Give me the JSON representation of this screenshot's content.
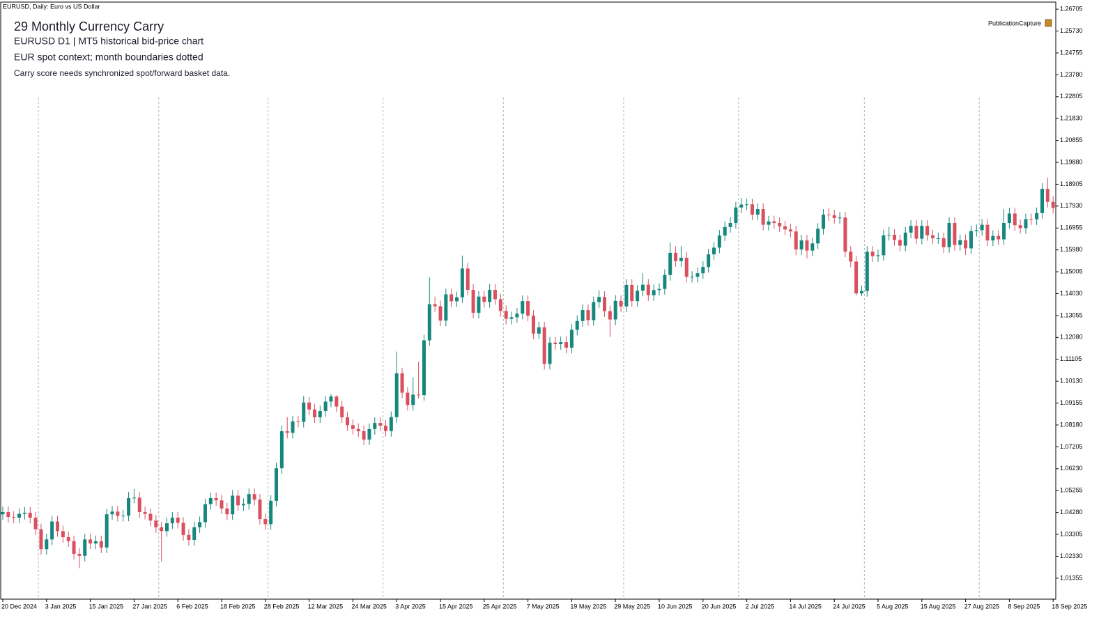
{
  "chart_data": {
    "type": "candlestick",
    "header": "EURUSD, Daily:  Euro vs US Dollar",
    "title": "29  Monthly Currency Carry",
    "subtitle": "EURUSD  D1  |  MT5 historical bid-price chart",
    "context": "EUR spot context; month boundaries dotted",
    "note": "Carry score needs synchronized spot/forward basket data.",
    "badge": "PublicationCapture",
    "bull_color": "#16877d",
    "bear_color": "#d9505f",
    "ylim": [
      1.0042,
      1.2702
    ],
    "yticks": [
      1.01355,
      {
        "value": 1.0233,
        "label": "1.02330"
      },
      1.03305,
      {
        "value": 1.0428,
        "label": "1.04280"
      },
      1.05255,
      {
        "value": 1.0623,
        "label": "1.06230"
      },
      1.07205,
      {
        "value": 1.0818,
        "label": "1.08180"
      },
      1.09155,
      {
        "value": 1.1013,
        "label": "1.10130"
      },
      1.11105,
      {
        "value": 1.1208,
        "label": "1.12080"
      },
      1.13055,
      {
        "value": 1.1403,
        "label": "1.14030"
      },
      1.15005,
      {
        "value": 1.1598,
        "label": "1.15980"
      },
      1.16955,
      {
        "value": 1.1793,
        "label": "1.17930"
      },
      1.18905,
      {
        "value": 1.1988,
        "label": "1.19880"
      },
      1.20855,
      {
        "value": 1.2183,
        "label": "1.21830"
      },
      1.22805,
      {
        "value": 1.2378,
        "label": "1.23780"
      },
      1.24755,
      {
        "value": 1.2573,
        "label": "1.25730"
      },
      1.26705
    ],
    "categories": [
      "20 Dec 2024",
      null,
      null,
      null,
      null,
      null,
      null,
      null,
      "3 Jan 2025",
      null,
      null,
      null,
      null,
      null,
      null,
      null,
      "15 Jan 2025",
      null,
      null,
      null,
      null,
      null,
      null,
      null,
      "27 Jan 2025",
      null,
      null,
      null,
      null,
      null,
      null,
      null,
      "6 Feb 2025",
      null,
      null,
      null,
      null,
      null,
      null,
      null,
      "18 Feb 2025",
      null,
      null,
      null,
      null,
      null,
      null,
      null,
      "28 Feb 2025",
      null,
      null,
      null,
      null,
      null,
      null,
      null,
      "12 Mar 2025",
      null,
      null,
      null,
      null,
      null,
      null,
      null,
      "24 Mar 2025",
      null,
      null,
      null,
      null,
      null,
      null,
      null,
      "3 Apr 2025",
      null,
      null,
      null,
      null,
      null,
      null,
      null,
      "15 Apr 2025",
      null,
      null,
      null,
      null,
      null,
      null,
      null,
      "25 Apr 2025",
      null,
      null,
      null,
      null,
      null,
      null,
      null,
      "7 May 2025",
      null,
      null,
      null,
      null,
      null,
      null,
      null,
      "19 May 2025",
      null,
      null,
      null,
      null,
      null,
      null,
      null,
      "29 May 2025",
      null,
      null,
      null,
      null,
      null,
      null,
      null,
      "10 Jun 2025",
      null,
      null,
      null,
      null,
      null,
      null,
      null,
      "20 Jun 2025",
      null,
      null,
      null,
      null,
      null,
      null,
      null,
      "2 Jul 2025",
      null,
      null,
      null,
      null,
      null,
      null,
      null,
      "14 Jul 2025",
      null,
      null,
      null,
      null,
      null,
      null,
      null,
      "24 Jul 2025",
      null,
      null,
      null,
      null,
      null,
      null,
      null,
      "5 Aug 2025",
      null,
      null,
      null,
      null,
      null,
      null,
      null,
      "15 Aug 2025",
      null,
      null,
      null,
      null,
      null,
      null,
      null,
      "27 Aug 2025",
      null,
      null,
      null,
      null,
      null,
      null,
      null,
      "8 Sep 2025",
      null,
      null,
      null,
      null,
      null,
      null,
      null,
      "18 Sep 2025"
    ],
    "open": [
      1.042,
      1.043,
      1.0408,
      1.0405,
      1.0422,
      1.0427,
      1.0405,
      1.0353,
      1.0265,
      1.0308,
      1.0388,
      1.0345,
      1.0318,
      1.03,
      1.0244,
      1.0235,
      1.0308,
      1.029,
      1.03,
      1.0272,
      1.042,
      1.0432,
      1.0413,
      1.0414,
      1.0492,
      1.0494,
      1.043,
      1.0422,
      1.0392,
      1.0362,
      1.0345,
      1.038,
      1.0405,
      1.0382,
      1.0328,
      1.0306,
      1.0362,
      1.0385,
      1.0465,
      1.0492,
      1.0482,
      1.0446,
      1.042,
      1.0503,
      1.046,
      1.0466,
      1.051,
      1.0485,
      1.0399,
      1.0376,
      1.048,
      1.0625,
      1.079,
      1.0783,
      1.0834,
      1.0832,
      1.0918,
      1.0887,
      1.0852,
      1.088,
      1.0922,
      1.0945,
      1.09,
      1.0852,
      1.0817,
      1.08,
      1.079,
      1.0753,
      1.08,
      1.0827,
      1.0815,
      1.0791,
      1.0853,
      1.1048,
      1.0962,
      1.0907,
      1.0953,
      1.0951,
      1.1195,
      1.1356,
      1.1347,
      1.1283,
      1.14,
      1.1369,
      1.1387,
      1.1515,
      1.142,
      1.1318,
      1.139,
      1.1366,
      1.142,
      1.1378,
      1.1326,
      1.1291,
      1.1298,
      1.1314,
      1.137,
      1.1305,
      1.1225,
      1.1253,
      1.109,
      1.1185,
      1.1178,
      1.1187,
      1.1162,
      1.1242,
      1.1281,
      1.133,
      1.1285,
      1.1365,
      1.1388,
      1.1325,
      1.1288,
      1.1371,
      1.1346,
      1.1442,
      1.137,
      1.1416,
      1.1443,
      1.1396,
      1.1419,
      1.1424,
      1.1486,
      1.1585,
      1.1548,
      1.1563,
      1.1478,
      1.1478,
      1.1494,
      1.1522,
      1.1578,
      1.1608,
      1.1662,
      1.17,
      1.1718,
      1.1787,
      1.18,
      1.1801,
      1.1755,
      1.178,
      1.171,
      1.1725,
      1.1718,
      1.1703,
      1.1689,
      1.168,
      1.16,
      1.164,
      1.1595,
      1.1627,
      1.1692,
      1.1755,
      1.1752,
      1.174,
      1.1742,
      1.159,
      1.1546,
      1.1404,
      1.1415,
      1.159,
      1.157,
      1.1574,
      1.1663,
      1.1665,
      1.1642,
      1.1617,
      1.1675,
      1.1705,
      1.1648,
      1.1705,
      1.1663,
      1.165,
      1.165,
      1.161,
      1.1718,
      1.162,
      1.1641,
      1.1605,
      1.1682,
      1.1686,
      1.171,
      1.164,
      1.166,
      1.1645,
      1.1718,
      1.176,
      1.1708,
      1.1695,
      1.1735,
      1.1734,
      1.1762,
      1.187,
      1.1812
    ],
    "high": [
      1.0455,
      1.0455,
      1.0433,
      1.0447,
      1.0452,
      1.0452,
      1.043,
      1.0378,
      1.0333,
      1.0413,
      1.0413,
      1.037,
      1.0343,
      1.0325,
      1.0269,
      1.0333,
      1.0333,
      1.0325,
      1.0325,
      1.0445,
      1.0457,
      1.0457,
      1.0439,
      1.052,
      1.0533,
      1.0519,
      1.0455,
      1.0447,
      1.0417,
      1.0387,
      1.0405,
      1.043,
      1.043,
      1.0407,
      1.0353,
      1.0387,
      1.041,
      1.049,
      1.0517,
      1.0517,
      1.0507,
      1.0471,
      1.0528,
      1.0528,
      1.0491,
      1.0535,
      1.0535,
      1.051,
      1.0424,
      1.0505,
      1.065,
      1.0815,
      1.0853,
      1.0859,
      1.0859,
      1.0947,
      1.0943,
      1.0912,
      1.0905,
      1.0947,
      1.0955,
      1.095,
      1.0925,
      1.0877,
      1.0842,
      1.0825,
      1.0815,
      1.0825,
      1.0852,
      1.0852,
      1.084,
      1.0878,
      1.1145,
      1.1073,
      1.0987,
      1.103,
      1.11,
      1.122,
      1.1475,
      1.139,
      1.1372,
      1.1425,
      1.1425,
      1.1412,
      1.1573,
      1.154,
      1.1445,
      1.1415,
      1.1415,
      1.1445,
      1.1445,
      1.1403,
      1.1351,
      1.1323,
      1.1339,
      1.1395,
      1.1395,
      1.133,
      1.1278,
      1.1278,
      1.121,
      1.121,
      1.1212,
      1.1212,
      1.1267,
      1.1306,
      1.1355,
      1.1355,
      1.139,
      1.1418,
      1.1413,
      1.135,
      1.1396,
      1.1396,
      1.1467,
      1.1467,
      1.1441,
      1.1495,
      1.1468,
      1.1444,
      1.1449,
      1.1511,
      1.1631,
      1.1614,
      1.1615,
      1.1588,
      1.1503,
      1.1519,
      1.1547,
      1.1603,
      1.1633,
      1.1687,
      1.1725,
      1.1743,
      1.1812,
      1.183,
      1.1826,
      1.1826,
      1.1805,
      1.1805,
      1.175,
      1.175,
      1.1743,
      1.1728,
      1.1714,
      1.1705,
      1.1665,
      1.1665,
      1.1652,
      1.1717,
      1.178,
      1.1785,
      1.1777,
      1.1767,
      1.1767,
      1.1615,
      1.1571,
      1.144,
      1.1615,
      1.1615,
      1.1599,
      1.1688,
      1.17,
      1.169,
      1.1667,
      1.17,
      1.173,
      1.173,
      1.173,
      1.173,
      1.1688,
      1.1675,
      1.1675,
      1.1743,
      1.1743,
      1.1666,
      1.1666,
      1.1707,
      1.1711,
      1.1735,
      1.1735,
      1.1685,
      1.1685,
      1.178,
      1.1785,
      1.1785,
      1.1733,
      1.176,
      1.176,
      1.1787,
      1.1895,
      1.1919,
      1.1837
    ],
    "low": [
      1.0395,
      1.0383,
      1.038,
      1.038,
      1.0397,
      1.038,
      1.0328,
      1.024,
      1.024,
      1.0283,
      1.032,
      1.0293,
      1.0275,
      1.0219,
      1.018,
      1.021,
      1.0265,
      1.0265,
      1.0247,
      1.0247,
      1.0395,
      1.0388,
      1.0388,
      1.0389,
      1.0469,
      1.0405,
      1.0397,
      1.0367,
      1.0337,
      1.021,
      1.032,
      1.0355,
      1.0357,
      1.0303,
      1.0281,
      1.0281,
      1.0337,
      1.036,
      1.044,
      1.0457,
      1.0421,
      1.0395,
      1.0395,
      1.0435,
      1.0435,
      1.0441,
      1.046,
      1.0374,
      1.0351,
      1.0351,
      1.0455,
      1.06,
      1.0758,
      1.0758,
      1.0807,
      1.0807,
      1.0862,
      1.0827,
      1.0827,
      1.0855,
      1.0897,
      1.0875,
      1.0827,
      1.0792,
      1.0775,
      1.0765,
      1.0728,
      1.0728,
      1.0775,
      1.079,
      1.0766,
      1.0766,
      1.0828,
      1.0937,
      1.0882,
      1.0882,
      1.0935,
      1.0926,
      1.117,
      1.1322,
      1.1258,
      1.1258,
      1.1344,
      1.1344,
      1.1362,
      1.1395,
      1.1293,
      1.1293,
      1.1341,
      1.1341,
      1.1353,
      1.1301,
      1.1266,
      1.1266,
      1.1273,
      1.1289,
      1.128,
      1.12,
      1.12,
      1.1065,
      1.1065,
      1.1153,
      1.1153,
      1.1137,
      1.1137,
      1.1217,
      1.1256,
      1.126,
      1.126,
      1.134,
      1.13,
      1.121,
      1.1263,
      1.1321,
      1.1321,
      1.1345,
      1.1345,
      1.1391,
      1.1371,
      1.1371,
      1.1394,
      1.1399,
      1.1461,
      1.1523,
      1.1523,
      1.1453,
      1.1453,
      1.1453,
      1.1469,
      1.1497,
      1.1553,
      1.1583,
      1.1637,
      1.1675,
      1.1693,
      1.1762,
      1.1775,
      1.173,
      1.173,
      1.1685,
      1.1685,
      1.1693,
      1.1678,
      1.1664,
      1.1655,
      1.1575,
      1.1575,
      1.156,
      1.157,
      1.1602,
      1.1667,
      1.1727,
      1.1715,
      1.1715,
      1.1565,
      1.1521,
      1.1395,
      1.1392,
      1.139,
      1.1545,
      1.1545,
      1.1549,
      1.164,
      1.1617,
      1.1592,
      1.1592,
      1.165,
      1.1623,
      1.1623,
      1.1638,
      1.1625,
      1.1625,
      1.1585,
      1.1585,
      1.1595,
      1.1595,
      1.1575,
      1.158,
      1.1657,
      1.1661,
      1.1615,
      1.1615,
      1.162,
      1.162,
      1.1693,
      1.1683,
      1.167,
      1.167,
      1.1709,
      1.1709,
      1.1737,
      1.1787,
      1.176
    ],
    "close": [
      1.043,
      1.0408,
      1.0405,
      1.0422,
      1.0427,
      1.0405,
      1.0353,
      1.0265,
      1.0308,
      1.0388,
      1.0345,
      1.0318,
      1.03,
      1.0244,
      1.0235,
      1.0308,
      1.029,
      1.03,
      1.0272,
      1.042,
      1.0432,
      1.0413,
      1.0414,
      1.0492,
      1.0494,
      1.043,
      1.0422,
      1.0392,
      1.0362,
      1.0345,
      1.038,
      1.0405,
      1.0382,
      1.0328,
      1.0306,
      1.0362,
      1.0385,
      1.0465,
      1.0492,
      1.0482,
      1.0446,
      1.042,
      1.0503,
      1.046,
      1.0466,
      1.051,
      1.0485,
      1.0399,
      1.0376,
      1.048,
      1.0625,
      1.079,
      1.0783,
      1.0834,
      1.0832,
      1.0918,
      1.0887,
      1.0852,
      1.088,
      1.0922,
      1.0945,
      1.09,
      1.0852,
      1.0817,
      1.08,
      1.079,
      1.0753,
      1.08,
      1.0827,
      1.0815,
      1.0791,
      1.0853,
      1.1048,
      1.0962,
      1.0907,
      1.0953,
      1.0951,
      1.1195,
      1.1356,
      1.1347,
      1.1283,
      1.14,
      1.1369,
      1.1387,
      1.1515,
      1.142,
      1.1318,
      1.139,
      1.1366,
      1.142,
      1.1378,
      1.1326,
      1.1291,
      1.1298,
      1.1314,
      1.137,
      1.1305,
      1.1225,
      1.1253,
      1.109,
      1.1185,
      1.1178,
      1.1187,
      1.1162,
      1.1242,
      1.1281,
      1.133,
      1.1285,
      1.1365,
      1.1388,
      1.1325,
      1.1288,
      1.1371,
      1.1346,
      1.1442,
      1.137,
      1.1416,
      1.1443,
      1.1396,
      1.1419,
      1.1424,
      1.1486,
      1.1585,
      1.1548,
      1.1563,
      1.1478,
      1.1478,
      1.1494,
      1.1522,
      1.1578,
      1.1608,
      1.1662,
      1.17,
      1.1718,
      1.1787,
      1.18,
      1.1801,
      1.1755,
      1.178,
      1.171,
      1.1725,
      1.1718,
      1.1703,
      1.1689,
      1.168,
      1.16,
      1.164,
      1.1595,
      1.1627,
      1.1692,
      1.1755,
      1.1752,
      1.174,
      1.1742,
      1.159,
      1.1546,
      1.1404,
      1.1415,
      1.159,
      1.157,
      1.1574,
      1.1663,
      1.1665,
      1.1642,
      1.1617,
      1.1675,
      1.1705,
      1.1648,
      1.1705,
      1.1663,
      1.165,
      1.165,
      1.161,
      1.1718,
      1.162,
      1.1641,
      1.1605,
      1.1682,
      1.1686,
      1.171,
      1.164,
      1.166,
      1.1645,
      1.1718,
      1.176,
      1.1708,
      1.1695,
      1.1735,
      1.1734,
      1.1762,
      1.187,
      1.1812,
      1.1785
    ]
  }
}
